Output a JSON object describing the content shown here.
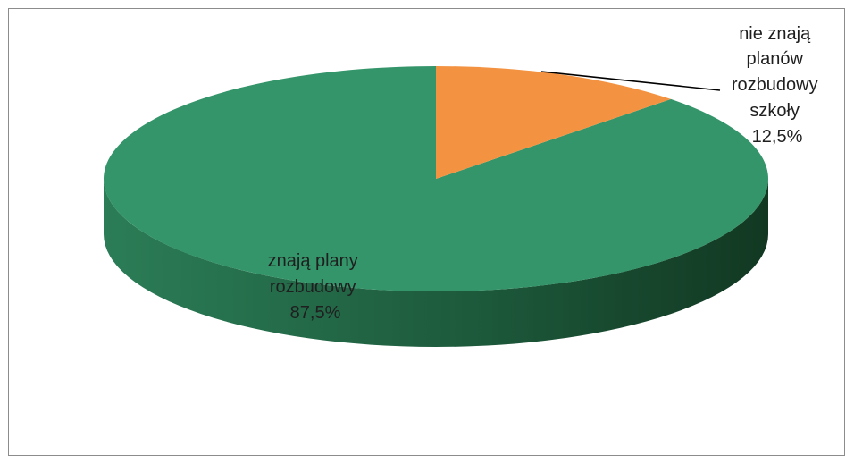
{
  "chart_data": {
    "type": "pie",
    "style": "3d",
    "title": "",
    "slices": [
      {
        "label_lines": [
          "znają plany",
          "rozbudowy"
        ],
        "value": 87.5,
        "value_label": "87,5%",
        "color": "#34956A",
        "side_color_light": "#2B7D57",
        "side_color_dark": "#123822"
      },
      {
        "label_lines": [
          "nie znają",
          "planów",
          "rozbudowy",
          "szkoły"
        ],
        "value": 12.5,
        "value_label": "12,5%",
        "color": "#F39341",
        "side_color_light": "#C9732B",
        "side_color_dark": "#8A4A14"
      }
    ],
    "legend": "none",
    "grid": false
  }
}
